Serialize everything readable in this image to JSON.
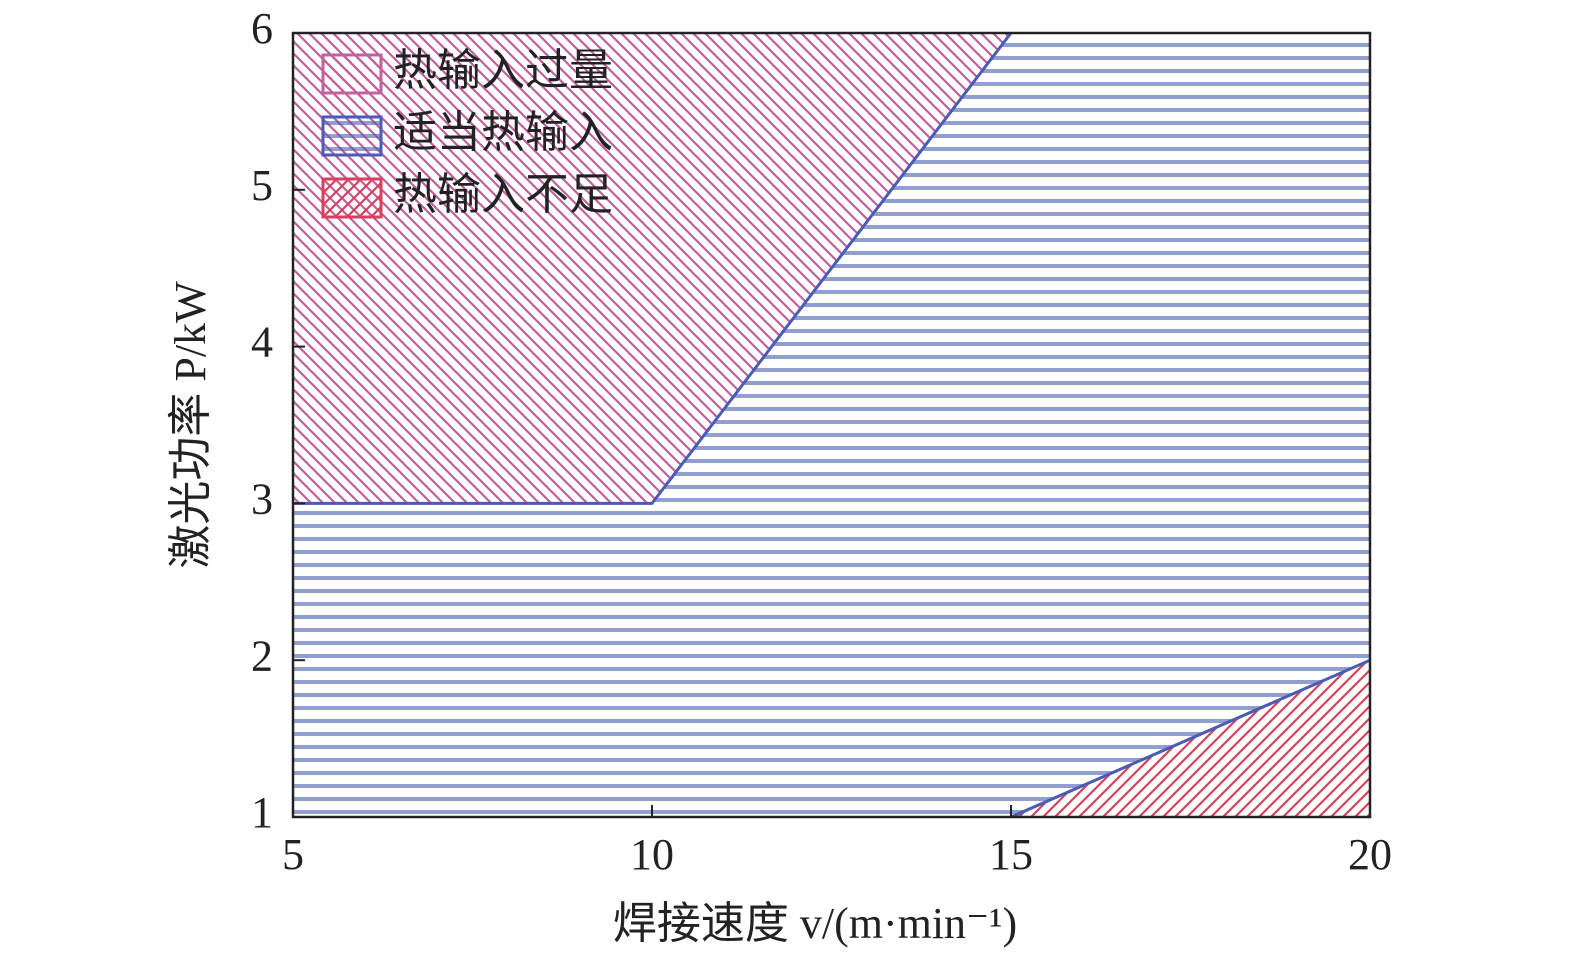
{
  "chart_data": {
    "type": "region",
    "x_label": "焊接速度 v/(m·min⁻¹)",
    "y_label": "激光功率 P/kW",
    "xlim": [
      5,
      20
    ],
    "xticks": [
      5,
      10,
      15,
      20
    ],
    "ylim": [
      1,
      6
    ],
    "yticks": [
      1,
      2,
      3,
      4,
      5,
      6
    ],
    "legend": "upper left",
    "series": [
      {
        "name": "热输入过量",
        "color": "#c0609c",
        "hatch": "backslash",
        "region": "above",
        "x": [
          5,
          10,
          15
        ],
        "y": [
          3,
          3,
          6
        ]
      },
      {
        "name": "适当热输入",
        "color": "#4a5cb4",
        "hatch": "horizontal",
        "region": "between"
      },
      {
        "name": "热输入不足",
        "color": "#d8405c",
        "hatch": "slash",
        "region": "below",
        "x": [
          15,
          20
        ],
        "y": [
          1,
          2
        ]
      }
    ]
  }
}
